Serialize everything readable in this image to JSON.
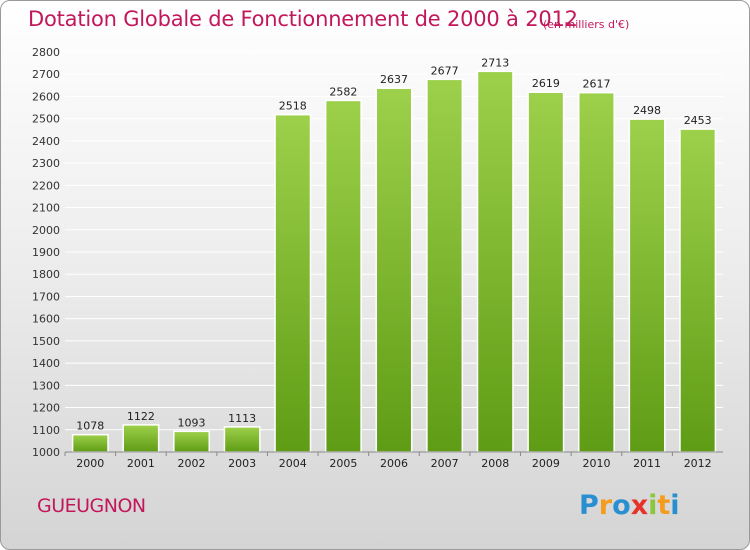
{
  "chart_data": {
    "type": "bar",
    "title": "Dotation Globale de Fonctionnement de 2000 à 2012",
    "unit_label": "(en milliers d'€)",
    "categories": [
      "2000",
      "2001",
      "2002",
      "2003",
      "2004",
      "2005",
      "2006",
      "2007",
      "2008",
      "2009",
      "2010",
      "2011",
      "2012"
    ],
    "values": [
      1078,
      1122,
      1093,
      1113,
      2518,
      2582,
      2637,
      2677,
      2713,
      2619,
      2617,
      2498,
      2453
    ],
    "ylim": [
      1000,
      2800
    ],
    "ytick_step": 100,
    "grid": true,
    "bar_color": "#7cb82f"
  },
  "footer": {
    "commune": "GUEUGNON",
    "logo_letters": [
      "P",
      "r",
      "o",
      "x",
      "i",
      "t",
      "i"
    ],
    "logo_colors": [
      "#2a8fd0",
      "#f39c1f",
      "#2a8fd0",
      "#e6332a",
      "#8cc63f",
      "#f39c1f",
      "#2a8fd0"
    ]
  }
}
